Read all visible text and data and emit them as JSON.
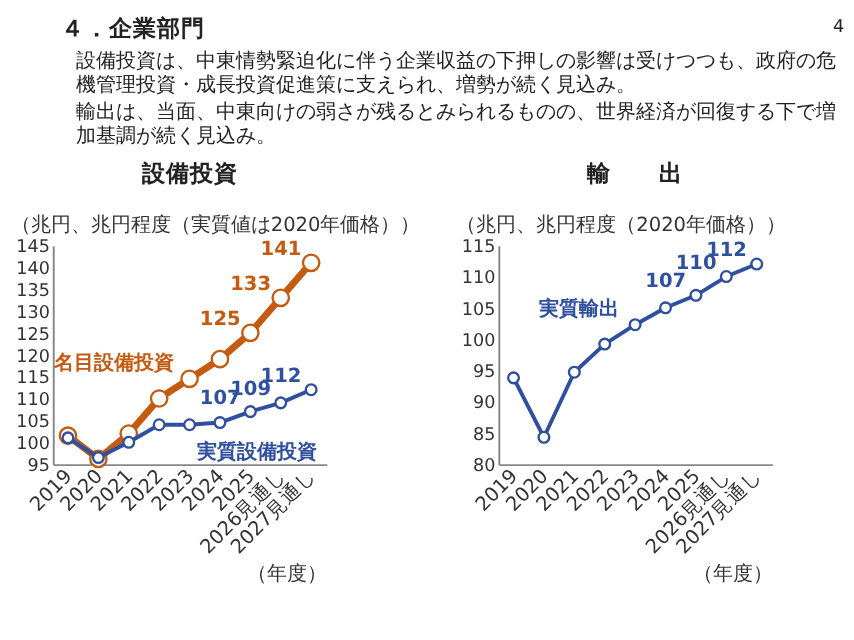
{
  "chart_data": [
    {
      "type": "other",
      "title": "４．企業部門",
      "annotations": [
        "設備投資は、中東情勢緊迫化に伴う企業収益の下押しの影響は受けつつも、政府の危機管理投資・成長投資促進策に支えられ、増勢が続く見込み。",
        "輸出は、当面、中東向けの弱さが残るとみられるものの、世界経済が回復する下で増加基調が続く見込み。",
        "4"
      ]
    },
    {
      "type": "line",
      "title": "設備投資",
      "ylabel": "（兆円、兆円程度（実質値は2020年価格））",
      "xlabel": "（年度）",
      "categories": [
        "2019",
        "2020",
        "2021",
        "2022",
        "2023",
        "2024",
        "2025",
        "2026見通し",
        "2027見通し"
      ],
      "ylim": [
        95,
        145
      ],
      "yticks": [
        95,
        100,
        105,
        110,
        115,
        120,
        125,
        130,
        135,
        140,
        145
      ],
      "marker": "circle",
      "grid": false,
      "legend": false,
      "series": [
        {
          "name": "名目設備投資",
          "color": "#c55a11",
          "values": [
            101.5,
            96.2,
            102,
            110,
            114.5,
            119,
            125,
            133,
            141
          ],
          "value_labels": [
            null,
            null,
            null,
            null,
            null,
            null,
            "125",
            "133",
            "141"
          ]
        },
        {
          "name": "実質設備投資",
          "color": "#2f4f9f",
          "values": [
            101,
            96.5,
            100,
            104,
            104,
            104.5,
            107,
            109,
            112
          ],
          "value_labels": [
            null,
            null,
            null,
            null,
            null,
            null,
            "107",
            "109",
            "112"
          ]
        }
      ]
    },
    {
      "type": "line",
      "title": "輸　　出",
      "ylabel": "（兆円、兆円程度（2020年価格））",
      "xlabel": "（年度）",
      "categories": [
        "2019",
        "2020",
        "2021",
        "2022",
        "2023",
        "2024",
        "2025",
        "2026見通し",
        "2027見通し"
      ],
      "ylim": [
        80,
        115
      ],
      "yticks": [
        80,
        85,
        90,
        95,
        100,
        105,
        110,
        115
      ],
      "marker": "circle",
      "grid": false,
      "legend": false,
      "series": [
        {
          "name": "実質輸出",
          "color": "#2f4f9f",
          "values": [
            93.8,
            84.3,
            94.7,
            99.2,
            102.3,
            105,
            107,
            110,
            112
          ],
          "value_labels": [
            null,
            null,
            null,
            null,
            null,
            null,
            "107",
            "110",
            "112"
          ]
        }
      ]
    }
  ]
}
